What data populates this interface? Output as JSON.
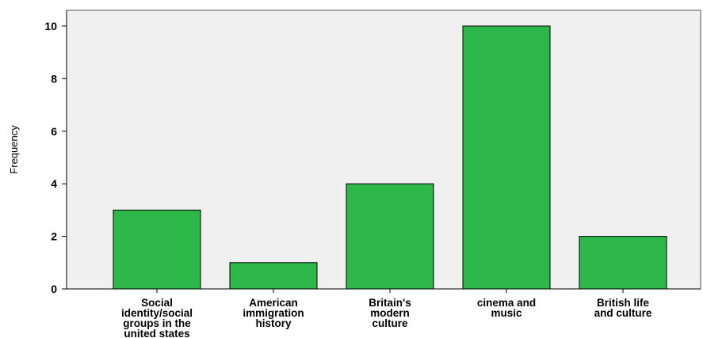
{
  "chart_data": {
    "type": "bar",
    "categories": [
      [
        "Social",
        "identity/social",
        "groups in the",
        "united states"
      ],
      [
        "American",
        "immigration",
        "history"
      ],
      [
        "Britain's",
        "modern",
        "culture"
      ],
      [
        "cinema and",
        "music"
      ],
      [
        "British life",
        "and culture"
      ]
    ],
    "values": [
      3,
      1,
      4,
      10,
      2
    ],
    "title": "",
    "xlabel": "",
    "ylabel": "Frequency",
    "ylim": [
      0,
      10.6
    ],
    "yticks": [
      0,
      2,
      4,
      6,
      8,
      10
    ],
    "grid": false,
    "colors": {
      "bar": "#2fb84a",
      "bar_edge": "#000000",
      "plot_bg": "#f0f0f0",
      "axis": "#000000"
    }
  }
}
